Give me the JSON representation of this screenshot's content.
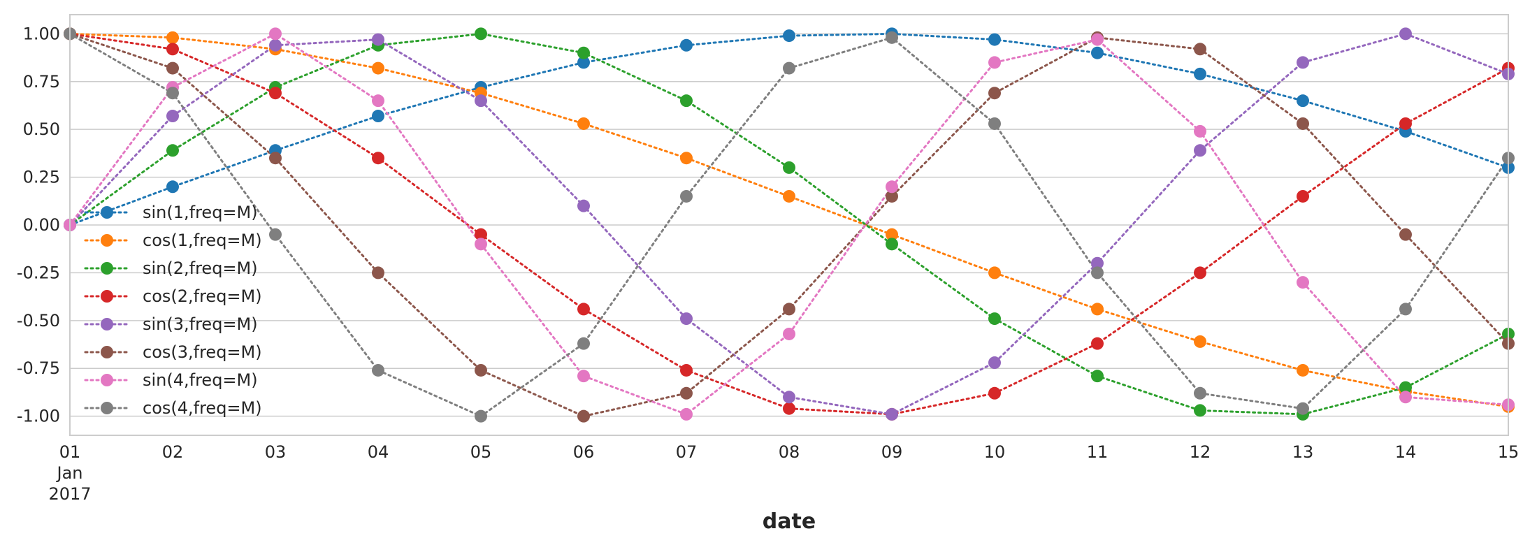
{
  "chart_data": {
    "type": "line",
    "title": "",
    "xlabel": "date",
    "ylabel": "",
    "x": [
      "2017-01-01",
      "2017-01-02",
      "2017-01-03",
      "2017-01-04",
      "2017-01-05",
      "2017-01-06",
      "2017-01-07",
      "2017-01-08",
      "2017-01-09",
      "2017-01-10",
      "2017-01-11",
      "2017-01-12",
      "2017-01-13",
      "2017-01-14",
      "2017-01-15"
    ],
    "x_tick_labels": [
      "01",
      "02",
      "03",
      "04",
      "05",
      "06",
      "07",
      "08",
      "09",
      "10",
      "11",
      "12",
      "13",
      "14",
      "15"
    ],
    "x_tick_sublabel": [
      "Jan",
      "2017"
    ],
    "xlim": [
      "2017-01-01",
      "2017-01-15"
    ],
    "ylim": [
      -1.1,
      1.1
    ],
    "y_ticks": [
      "1.00",
      "0.75",
      "0.50",
      "0.25",
      "0.00",
      "-0.25",
      "-0.50",
      "-0.75",
      "-1.00"
    ],
    "grid": true,
    "legend_position": "left",
    "line_style": "dotted",
    "markers": "circle",
    "series": [
      {
        "name": "sin(1,freq=M)",
        "color": "#1f77b4",
        "values": [
          0.0,
          0.2,
          0.39,
          0.57,
          0.72,
          0.85,
          0.94,
          0.99,
          1.0,
          0.97,
          0.9,
          0.79,
          0.65,
          0.49,
          0.3
        ]
      },
      {
        "name": "cos(1,freq=M)",
        "color": "#ff7f0e",
        "values": [
          1.0,
          0.98,
          0.92,
          0.82,
          0.69,
          0.53,
          0.35,
          0.15,
          -0.05,
          -0.25,
          -0.44,
          -0.61,
          -0.76,
          -0.87,
          -0.95
        ]
      },
      {
        "name": "sin(2,freq=M)",
        "color": "#2ca02c",
        "values": [
          0.0,
          0.39,
          0.72,
          0.94,
          1.0,
          0.9,
          0.65,
          0.3,
          -0.1,
          -0.49,
          -0.79,
          -0.97,
          -0.99,
          -0.85,
          -0.57
        ]
      },
      {
        "name": "cos(2,freq=M)",
        "color": "#d62728",
        "values": [
          1.0,
          0.92,
          0.69,
          0.35,
          -0.05,
          -0.44,
          -0.76,
          -0.96,
          -0.99,
          -0.88,
          -0.62,
          -0.25,
          0.15,
          0.53,
          0.82
        ]
      },
      {
        "name": "sin(3,freq=M)",
        "color": "#9467bd",
        "values": [
          0.0,
          0.57,
          0.94,
          0.97,
          0.65,
          0.1,
          -0.49,
          -0.9,
          -0.99,
          -0.72,
          -0.2,
          0.39,
          0.85,
          1.0,
          0.79
        ]
      },
      {
        "name": "cos(3,freq=M)",
        "color": "#8c564b",
        "values": [
          1.0,
          0.82,
          0.35,
          -0.25,
          -0.76,
          -1.0,
          -0.88,
          -0.44,
          0.15,
          0.69,
          0.98,
          0.92,
          0.53,
          -0.05,
          -0.62
        ]
      },
      {
        "name": "sin(4,freq=M)",
        "color": "#e377c2",
        "values": [
          0.0,
          0.72,
          1.0,
          0.65,
          -0.1,
          -0.79,
          -0.99,
          -0.57,
          0.2,
          0.85,
          0.97,
          0.49,
          -0.3,
          -0.9,
          -0.94
        ]
      },
      {
        "name": "cos(4,freq=M)",
        "color": "#7f7f7f",
        "values": [
          1.0,
          0.69,
          -0.05,
          -0.76,
          -1.0,
          -0.62,
          0.15,
          0.82,
          0.98,
          0.53,
          -0.25,
          -0.88,
          -0.96,
          -0.44,
          0.35
        ]
      }
    ]
  }
}
